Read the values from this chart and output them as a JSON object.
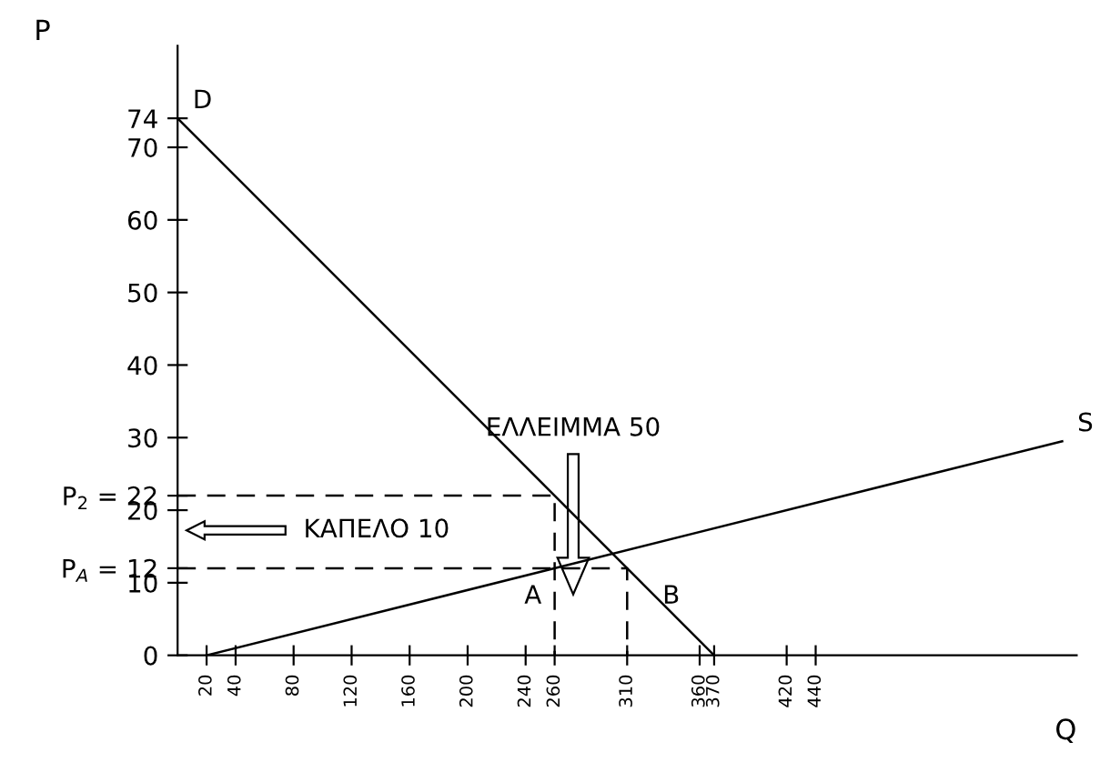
{
  "chart_data": {
    "type": "line",
    "xlabel": "Q",
    "ylabel": "P",
    "xlim": [
      0,
      620
    ],
    "ylim": [
      0,
      84
    ],
    "xticks": [
      20,
      40,
      80,
      120,
      160,
      200,
      240,
      260,
      310,
      360,
      370,
      420,
      440
    ],
    "yticks": [
      0,
      10,
      {
        "value": 12,
        "label": "P$_{A}$ = 12"
      },
      20,
      {
        "value": 22,
        "label": "P$_{2}$ = 22"
      },
      30,
      40,
      50,
      60,
      70,
      74
    ],
    "grid": false,
    "legend": false,
    "marker": "none",
    "series": [
      {
        "name": "D",
        "color": "#000000",
        "x": [
          0,
          370
        ],
        "values": [
          74,
          0
        ]
      },
      {
        "name": "S",
        "color": "#000000",
        "x": [
          20,
          610
        ],
        "values": [
          0,
          29.5
        ]
      },
      {
        "color": "#000000",
        "line_style": "dashed",
        "x": [
          0,
          260,
          260
        ],
        "values": [
          22,
          22,
          0
        ]
      },
      {
        "color": "#000000",
        "line_style": "dashed",
        "x": [
          0,
          310,
          310
        ],
        "values": [
          12,
          12,
          0
        ]
      }
    ],
    "annotations": [
      "ΕΛΛΕΙΜΜΑ 50",
      "ΚΑΠΕΛΟ 10",
      {
        "text": "A",
        "x": 260,
        "y": 12
      },
      {
        "text": "B",
        "x": 310,
        "y": 12
      }
    ]
  }
}
